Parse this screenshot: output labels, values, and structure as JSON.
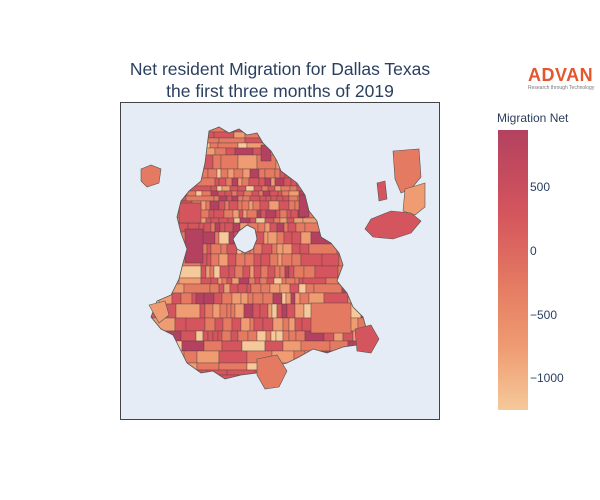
{
  "map": {
    "title_line1": "Net resident Migration for Dallas Texas",
    "title_line2": "the first three months of 2019"
  },
  "logo": {
    "wordmark": "ADVAN",
    "tagline": "Research through Technology",
    "color": "#e4572e"
  },
  "colorbar": {
    "title": "Migration Net",
    "colorscale": [
      "#f5c99a",
      "#ef9c72",
      "#e47a62",
      "#d4555d",
      "#b3415f"
    ],
    "range": [
      -1250,
      950
    ],
    "ticks": [
      {
        "value": 500,
        "label": "500"
      },
      {
        "value": 0,
        "label": "0"
      },
      {
        "value": -500,
        "label": "−500"
      },
      {
        "value": -1000,
        "label": "−1000"
      }
    ]
  },
  "colors": {
    "background": "#e5ecf6",
    "region_stroke": "#555555",
    "text": "#2a3f5f"
  }
}
